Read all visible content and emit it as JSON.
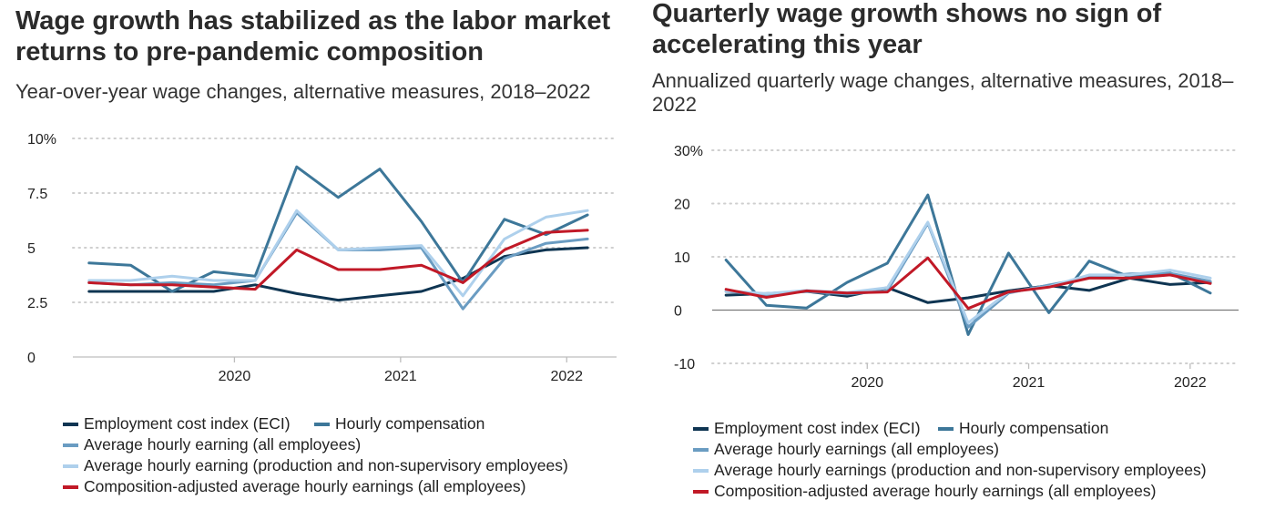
{
  "colors": {
    "eci": "#0f3552",
    "hourly_comp": "#3d7799",
    "ahe_all": "#6a9cc2",
    "ahe_prod": "#aed0ec",
    "comp_adj": "#c11927",
    "grid": "#cfcfcf",
    "axis": "#bdbdbd"
  },
  "chart_data": [
    {
      "type": "line",
      "title": "Wage growth has stabilized as the labor market returns to pre-pandemic composition",
      "subtitle": "Year-over-year wage changes, alternative measures, 2018–2022",
      "xlabel": "",
      "ylabel": "",
      "ylim": [
        0,
        10
      ],
      "xlim": [
        2019.0,
        2022.3
      ],
      "y_ticks": [
        0,
        2.5,
        5,
        7.5,
        10
      ],
      "y_tick_labels": [
        "0",
        "2.5",
        "5",
        "7.5",
        "10%"
      ],
      "x_ticks": [
        2020,
        2021,
        2022
      ],
      "x_tick_labels": [
        "2020",
        "2021",
        "2022"
      ],
      "grid": true,
      "legend_position": "bottom",
      "x": [
        2019.125,
        2019.375,
        2019.625,
        2019.875,
        2020.125,
        2020.375,
        2020.625,
        2020.875,
        2021.125,
        2021.375,
        2021.625,
        2021.875,
        2022.125
      ],
      "series": [
        {
          "key": "eci",
          "name": "Employment cost index (ECI)",
          "values": [
            3.0,
            3.0,
            3.0,
            3.0,
            3.3,
            2.9,
            2.6,
            2.8,
            3.0,
            3.6,
            4.6,
            4.9,
            5.0
          ]
        },
        {
          "key": "hourly_comp",
          "name": "Hourly compensation",
          "values": [
            4.3,
            4.2,
            3.0,
            3.9,
            3.7,
            8.7,
            7.3,
            8.6,
            6.2,
            3.4,
            6.3,
            5.6,
            6.5
          ]
        },
        {
          "key": "ahe_all",
          "name": "Average hourly earning (all employees)",
          "values": [
            3.4,
            3.3,
            3.4,
            3.3,
            3.5,
            6.6,
            4.9,
            4.9,
            5.0,
            2.2,
            4.5,
            5.2,
            5.4
          ]
        },
        {
          "key": "ahe_prod",
          "name": "Average hourly earning (production and non-supervisory employees)",
          "values": [
            3.5,
            3.5,
            3.7,
            3.5,
            3.5,
            6.7,
            4.9,
            5.0,
            5.1,
            2.8,
            5.4,
            6.4,
            6.7
          ]
        },
        {
          "key": "comp_adj",
          "name": "Composition-adjusted average hourly earnings (all employees)",
          "values": [
            3.4,
            3.3,
            3.3,
            3.2,
            3.1,
            4.9,
            4.0,
            4.0,
            4.2,
            3.4,
            4.9,
            5.7,
            5.8
          ]
        }
      ]
    },
    {
      "type": "line",
      "title": "Quarterly wage growth shows no sign of accelerating this year",
      "subtitle": "Annualized quarterly wage changes, alternative measures, 2018–2022",
      "xlabel": "",
      "ylabel": "",
      "ylim": [
        -10,
        30
      ],
      "xlim": [
        2019.0,
        2022.3
      ],
      "y_ticks": [
        -10,
        0,
        10,
        20,
        30
      ],
      "y_tick_labels": [
        "-10",
        "0",
        "10",
        "20",
        "30%"
      ],
      "x_ticks": [
        2020,
        2021,
        2022
      ],
      "x_tick_labels": [
        "2020",
        "2021",
        "2022"
      ],
      "grid": true,
      "zero_line": true,
      "legend_position": "bottom",
      "x": [
        2019.125,
        2019.375,
        2019.625,
        2019.875,
        2020.125,
        2020.375,
        2020.625,
        2020.875,
        2021.125,
        2021.375,
        2021.625,
        2021.875,
        2022.125
      ],
      "series": [
        {
          "key": "eci",
          "name": "Employment cost index (ECI)",
          "values": [
            2.8,
            3.1,
            3.5,
            2.6,
            4.2,
            1.4,
            2.3,
            3.6,
            4.6,
            3.7,
            6.0,
            4.8,
            5.2
          ]
        },
        {
          "key": "hourly_comp",
          "name": "Hourly compensation",
          "values": [
            9.4,
            0.9,
            0.4,
            5.2,
            8.8,
            21.6,
            -4.6,
            10.7,
            -0.5,
            9.2,
            6.2,
            7.0,
            3.2
          ]
        },
        {
          "key": "ahe_all",
          "name": "Average hourly earnings (all employees)",
          "values": [
            3.5,
            2.9,
            3.5,
            3.0,
            3.6,
            16.3,
            -3.2,
            3.2,
            4.7,
            6.1,
            6.8,
            6.9,
            5.4
          ]
        },
        {
          "key": "ahe_prod",
          "name": "Average hourly earnings (production and non-supervisory employees)",
          "values": [
            3.6,
            3.1,
            3.7,
            3.3,
            4.2,
            16.5,
            -2.4,
            3.4,
            4.4,
            6.6,
            6.6,
            7.5,
            6.0
          ]
        },
        {
          "key": "comp_adj",
          "name": "Composition-adjusted average hourly earnings (all employees)",
          "values": [
            3.9,
            2.4,
            3.6,
            3.2,
            3.4,
            9.8,
            0.3,
            3.4,
            4.3,
            6.0,
            6.0,
            6.6,
            5.0
          ]
        }
      ]
    }
  ]
}
